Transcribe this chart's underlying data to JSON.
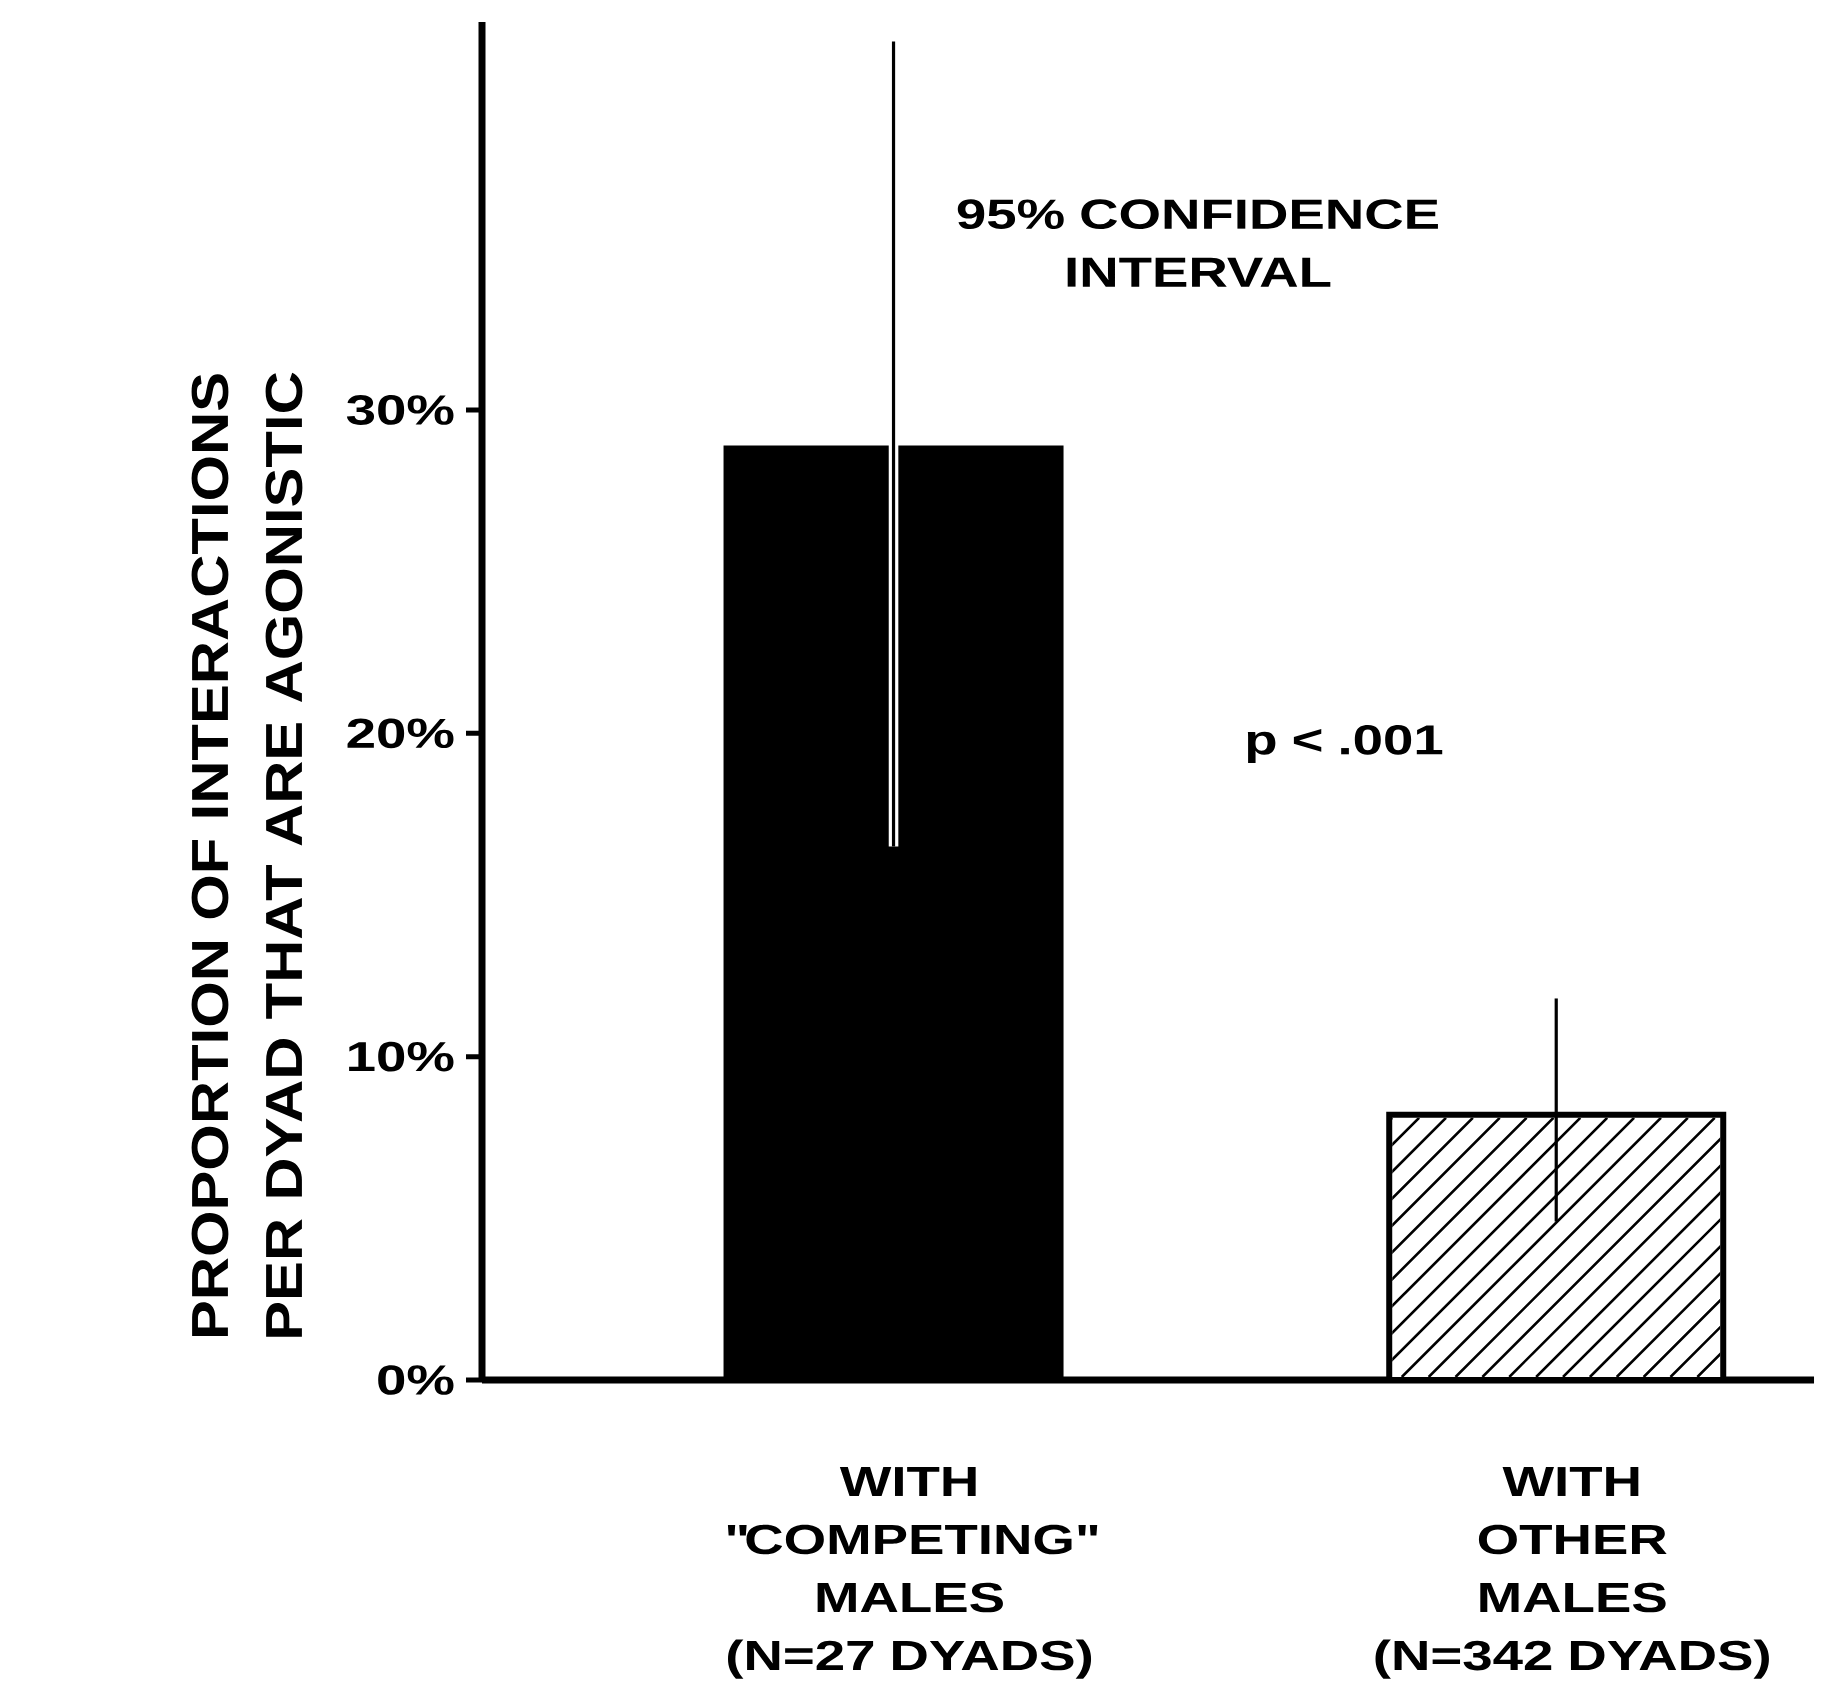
{
  "chart_data": {
    "type": "bar",
    "ylabel": "PROPORTION OF INTERACTIONS\nPER DYAD THAT ARE AGONISTIC",
    "categories": [
      "WITH\n\"COMPETING\"\nMALES\n(N=27 DYADS)",
      "WITH\nOTHER\nMALES\n(N=342 DYADS)"
    ],
    "values": [
      28.9,
      8.2
    ],
    "colors": [
      "#000000",
      "#ffffff"
    ],
    "errors": [
      [
        16.5,
        41.4
      ],
      [
        4.9,
        11.8
      ]
    ],
    "ylim": [
      0,
      42
    ],
    "yticks": [
      {
        "value": 0,
        "label": "0%"
      },
      {
        "value": 10,
        "label": "10%"
      },
      {
        "value": 20,
        "label": "20%"
      },
      {
        "value": 30,
        "label": "30%"
      }
    ],
    "annotations": [
      "95% CONFIDENCE\nINTERVAL",
      "p < .001"
    ]
  }
}
